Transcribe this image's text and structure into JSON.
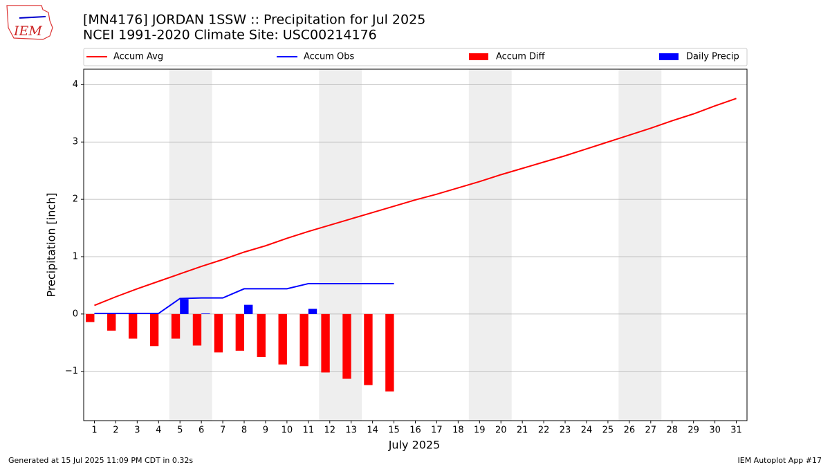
{
  "chart_data": {
    "type": "line",
    "title": "[MN4176] JORDAN 1SSW :: Precipitation for Jul 2025",
    "subtitle": "NCEI 1991-2020 Climate Site: USC00214176",
    "xlabel": "July 2025",
    "ylabel": "Precipitation [inch]",
    "logo_text": "IEM",
    "footer_left": "Generated at 15 Jul 2025 11:09 PM CDT in 0.32s",
    "footer_right": "IEM Autoplot App #17",
    "x": [
      1,
      2,
      3,
      4,
      5,
      6,
      7,
      8,
      9,
      10,
      11,
      12,
      13,
      14,
      15,
      16,
      17,
      18,
      19,
      20,
      21,
      22,
      23,
      24,
      25,
      26,
      27,
      28,
      29,
      30,
      31
    ],
    "xlim": [
      0.5,
      31.5
    ],
    "xticks": [
      1,
      2,
      3,
      4,
      5,
      6,
      7,
      8,
      9,
      10,
      11,
      12,
      13,
      14,
      15,
      16,
      17,
      18,
      19,
      20,
      21,
      22,
      23,
      24,
      25,
      26,
      27,
      28,
      29,
      30,
      31
    ],
    "ylim": [
      -1.86,
      4.27
    ],
    "yticks": [
      -1,
      0,
      1,
      2,
      3,
      4
    ],
    "grid": true,
    "shaded_spans": [
      [
        4.5,
        6.5
      ],
      [
        11.5,
        13.5
      ],
      [
        18.5,
        20.5
      ],
      [
        25.5,
        27.5
      ]
    ],
    "shade_color": "#eeeeee",
    "legend": "top",
    "series": [
      {
        "name": "Accum Avg",
        "type": "line",
        "color": "#ff0000",
        "values": [
          0.15,
          0.3,
          0.44,
          0.57,
          0.7,
          0.83,
          0.95,
          1.08,
          1.19,
          1.32,
          1.44,
          1.55,
          1.66,
          1.77,
          1.88,
          1.99,
          2.09,
          2.2,
          2.31,
          2.43,
          2.54,
          2.65,
          2.76,
          2.88,
          3.0,
          3.12,
          3.24,
          3.37,
          3.49,
          3.63,
          3.76
        ]
      },
      {
        "name": "Accum Obs",
        "type": "line",
        "color": "#0000ff",
        "values": [
          0.01,
          0.01,
          0.01,
          0.01,
          0.27,
          0.28,
          0.28,
          0.44,
          0.44,
          0.44,
          0.53,
          0.53,
          0.53,
          0.53,
          0.53,
          null,
          null,
          null,
          null,
          null,
          null,
          null,
          null,
          null,
          null,
          null,
          null,
          null,
          null,
          null,
          null
        ]
      },
      {
        "name": "Accum Diff",
        "type": "bar",
        "color": "#ff0000",
        "offset": "left",
        "values": [
          -0.14,
          -0.29,
          -0.43,
          -0.56,
          -0.43,
          -0.55,
          -0.67,
          -0.64,
          -0.75,
          -0.88,
          -0.91,
          -1.02,
          -1.13,
          -1.24,
          -1.35,
          null,
          null,
          null,
          null,
          null,
          null,
          null,
          null,
          null,
          null,
          null,
          null,
          null,
          null,
          null,
          null
        ]
      },
      {
        "name": "Daily Precip",
        "type": "bar",
        "color": "#0000ff",
        "offset": "right",
        "values": [
          0,
          0,
          0,
          0,
          0.26,
          0.01,
          0,
          0.16,
          0,
          0,
          0.09,
          0,
          0,
          0,
          0,
          null,
          null,
          null,
          null,
          null,
          null,
          null,
          null,
          null,
          null,
          null,
          null,
          null,
          null,
          null,
          null
        ]
      }
    ]
  }
}
